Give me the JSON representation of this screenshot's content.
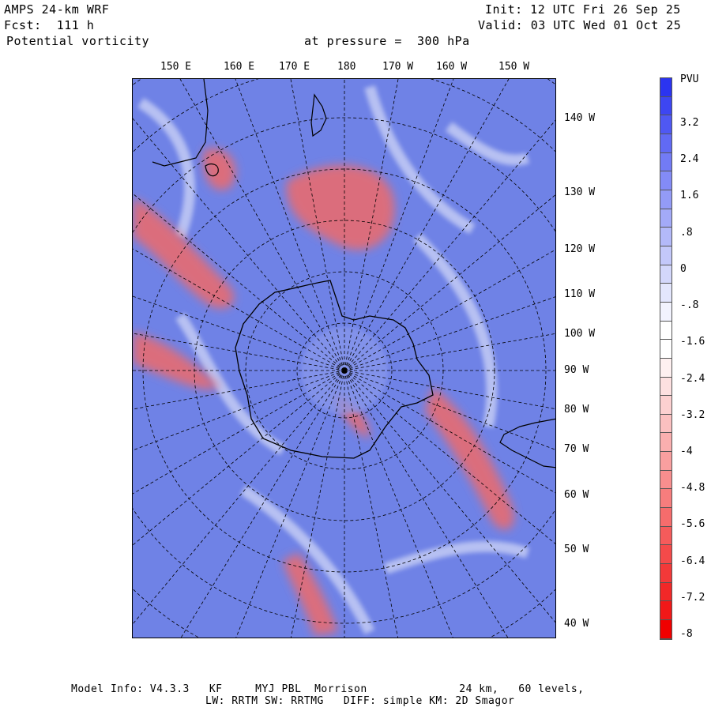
{
  "header": {
    "model": "AMPS 24-km WRF",
    "init": "Init: 12 UTC Fri 26 Sep 25",
    "forecast": "Fcst:  111 h",
    "valid": "Valid: 03 UTC Wed 01 Oct 25",
    "field": "Potential vorticity",
    "level": "at pressure =  300 hPa"
  },
  "map": {
    "top_labels": [
      "150 E",
      "160 E",
      "170 E",
      "180",
      "170 W",
      "160 W",
      "150 W"
    ],
    "right_labels": [
      "140 W",
      "130 W",
      "120 W",
      "110 W",
      "100 W",
      "90 W",
      "80 W",
      "70 W",
      "60 W",
      "50 W",
      "40 W"
    ]
  },
  "colorbar": {
    "unit": "PVU",
    "labels": [
      "3.2",
      "2.4",
      "1.6",
      ".8",
      "0",
      "-.8",
      "-1.6",
      "-2.4",
      "-3.2",
      "-4",
      "-4.8",
      "-5.6",
      "-6.4",
      "-7.2",
      "-8"
    ],
    "colors": [
      "#2b34f0",
      "#3d46f2",
      "#4f58f3",
      "#616af4",
      "#727bf5",
      "#838bf6",
      "#939bf7",
      "#a3aaf8",
      "#b3b9f9",
      "#c3c8fa",
      "#d3d7fb",
      "#e3e6fd",
      "#f2f3fe",
      "#ffffff",
      "#ffffff",
      "#fef0f0",
      "#fde0e0",
      "#fcd0d0",
      "#fbc0c0",
      "#faafaf",
      "#f99f9f",
      "#f88e8e",
      "#f77d7d",
      "#f66c6c",
      "#f55b5b",
      "#f44a4a",
      "#f33939",
      "#f22828",
      "#f11818",
      "#f00000"
    ]
  },
  "footer": {
    "line1": "Model Info: V4.3.3   KF     MYJ PBL  Morrison              24 km,   60 levels,",
    "line2": "LW: RRTM SW: RRTMG   DIFF: simple KM: 2D Smagor"
  }
}
